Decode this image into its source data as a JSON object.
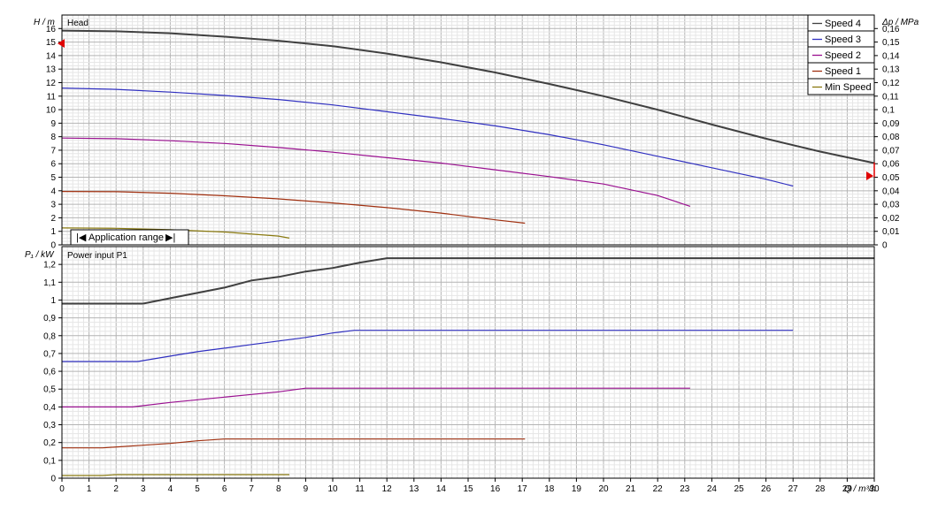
{
  "chart_data": [
    {
      "type": "line",
      "title": "Head",
      "ylabel": "H / m",
      "y2label": "Δp / MPa",
      "xlim": [
        0,
        30
      ],
      "ylim": [
        0,
        17
      ],
      "y2lim": [
        0,
        0.17
      ],
      "grid": true,
      "y_ticks": [
        0,
        1,
        2,
        3,
        4,
        5,
        6,
        7,
        8,
        9,
        10,
        11,
        12,
        13,
        14,
        15,
        16
      ],
      "y2_ticks": [
        "0",
        "0,01",
        "0,02",
        "0,03",
        "0,04",
        "0,05",
        "0,06",
        "0,07",
        "0,08",
        "0,09",
        "0,1",
        "0,11",
        "0,12",
        "0,13",
        "0,14",
        "0,15",
        "0,16"
      ],
      "y2_values": [
        0,
        0.01,
        0.02,
        0.03,
        0.04,
        0.05,
        0.06,
        0.07,
        0.08,
        0.09,
        0.1,
        0.11,
        0.12,
        0.13,
        0.14,
        0.15,
        0.16
      ],
      "series": [
        {
          "name": "Speed 4",
          "color": "#404040",
          "x": [
            0,
            2,
            4,
            6,
            8,
            10,
            12,
            14,
            16,
            18,
            20,
            22,
            24,
            26,
            28,
            30
          ],
          "y": [
            15.85,
            15.8,
            15.65,
            15.4,
            15.1,
            14.7,
            14.15,
            13.5,
            12.75,
            11.9,
            11,
            10,
            8.9,
            7.85,
            6.9,
            6.05
          ]
        },
        {
          "name": "Speed 3",
          "color": "#3030c0",
          "x": [
            0,
            2,
            4,
            6,
            8,
            10,
            12,
            14,
            16,
            18,
            20,
            22,
            24,
            26,
            27
          ],
          "y": [
            11.6,
            11.5,
            11.3,
            11.05,
            10.75,
            10.35,
            9.85,
            9.35,
            8.8,
            8.15,
            7.4,
            6.55,
            5.7,
            4.85,
            4.35
          ]
        },
        {
          "name": "Speed 2",
          "color": "#9a1090",
          "x": [
            0,
            2,
            4,
            6,
            8,
            10,
            12,
            14,
            16,
            18,
            20,
            22,
            23.2
          ],
          "y": [
            7.9,
            7.85,
            7.7,
            7.5,
            7.2,
            6.85,
            6.45,
            6.05,
            5.55,
            5.05,
            4.5,
            3.65,
            2.85
          ]
        },
        {
          "name": "Speed 1",
          "color": "#a03010",
          "x": [
            0,
            2,
            4,
            6,
            8,
            10,
            12,
            14,
            16,
            17.1
          ],
          "y": [
            3.95,
            3.93,
            3.82,
            3.63,
            3.4,
            3.1,
            2.75,
            2.35,
            1.85,
            1.6
          ]
        },
        {
          "name": "Min Speed",
          "color": "#8a7a10",
          "x": [
            0,
            2,
            4,
            6,
            8,
            8.4
          ],
          "y": [
            1.25,
            1.22,
            1.12,
            0.95,
            0.65,
            0.5
          ]
        }
      ],
      "markers": [
        {
          "label": "left-triangle",
          "x": 0,
          "y": 14.9
        },
        {
          "label": "right-triangle",
          "x": 30,
          "y": 5.1
        }
      ],
      "annotation": "Application range",
      "annotation_left_glyph": "|◀",
      "annotation_right_glyph": "▶|"
    },
    {
      "type": "line",
      "title": "Power input  P1",
      "ylabel": "P₁ / kW",
      "xlabel": "Q / m³/h",
      "xlim": [
        0,
        30
      ],
      "ylim": [
        0,
        1.3
      ],
      "grid": true,
      "x_ticks": [
        0,
        1,
        2,
        3,
        4,
        5,
        6,
        7,
        8,
        9,
        10,
        11,
        12,
        13,
        14,
        15,
        16,
        17,
        18,
        19,
        20,
        21,
        22,
        23,
        24,
        25,
        26,
        27,
        28,
        29,
        30
      ],
      "y_ticks": [
        "0",
        "0,1",
        "0,2",
        "0,3",
        "0,4",
        "0,5",
        "0,6",
        "0,7",
        "0,8",
        "0,9",
        "1",
        "1,1",
        "1,2"
      ],
      "y_values": [
        0,
        0.1,
        0.2,
        0.3,
        0.4,
        0.5,
        0.6,
        0.7,
        0.8,
        0.9,
        1,
        1.1,
        1.2
      ],
      "series": [
        {
          "name": "Speed 4",
          "color": "#404040",
          "x": [
            0,
            3,
            4,
            5,
            6,
            7,
            8,
            9,
            10,
            11,
            12,
            30
          ],
          "y": [
            0.98,
            0.98,
            1.01,
            1.04,
            1.07,
            1.11,
            1.13,
            1.16,
            1.18,
            1.21,
            1.235,
            1.235
          ]
        },
        {
          "name": "Speed 3",
          "color": "#3030c0",
          "x": [
            0,
            2.8,
            4,
            5,
            6,
            7,
            8,
            9,
            10,
            10.8,
            27
          ],
          "y": [
            0.655,
            0.655,
            0.685,
            0.71,
            0.73,
            0.75,
            0.77,
            0.79,
            0.815,
            0.83,
            0.83
          ]
        },
        {
          "name": "Speed 2",
          "color": "#9a1090",
          "x": [
            0,
            2.6,
            4,
            5,
            6,
            7,
            8,
            9,
            23.2
          ],
          "y": [
            0.4,
            0.4,
            0.425,
            0.44,
            0.455,
            0.47,
            0.485,
            0.505,
            0.505
          ]
        },
        {
          "name": "Speed 1",
          "color": "#a03010",
          "x": [
            0,
            1.5,
            3,
            4,
            5,
            6,
            17.1
          ],
          "y": [
            0.17,
            0.17,
            0.185,
            0.195,
            0.21,
            0.22,
            0.22
          ]
        },
        {
          "name": "Min Speed",
          "color": "#8a7a10",
          "x": [
            0,
            1.5,
            2,
            8.4
          ],
          "y": [
            0.015,
            0.015,
            0.02,
            0.02
          ]
        }
      ]
    }
  ],
  "legend": [
    {
      "label": "Speed 4",
      "color": "#404040"
    },
    {
      "label": "Speed 3",
      "color": "#3030c0"
    },
    {
      "label": "Speed 2",
      "color": "#9a1090"
    },
    {
      "label": "Speed 1",
      "color": "#a03010"
    },
    {
      "label": "Min Speed",
      "color": "#8a7a10"
    }
  ],
  "colors": {
    "grid_minor": "#e6e6e6",
    "grid_major": "#b4b4b4",
    "marker": "#e00000",
    "annotation_text": "#d00000"
  }
}
